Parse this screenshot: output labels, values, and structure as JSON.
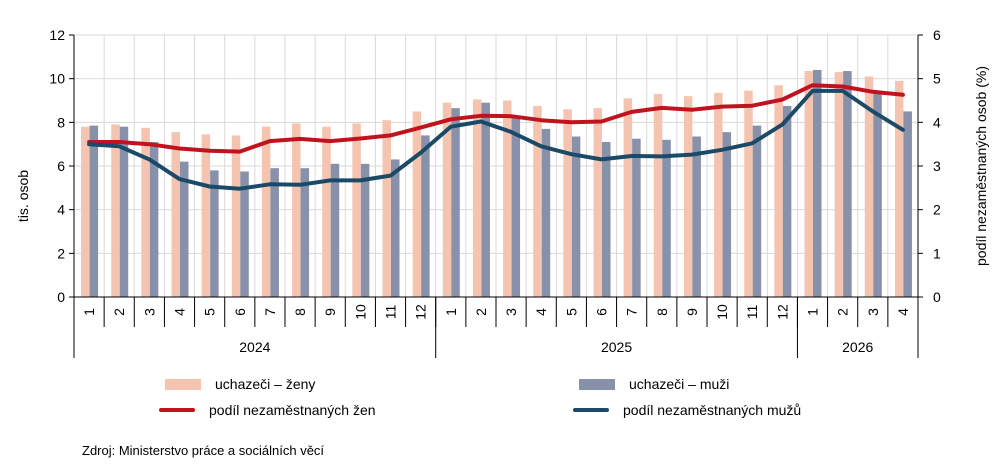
{
  "chart_data": {
    "type": "bar",
    "categories": [
      "1",
      "2",
      "3",
      "4",
      "5",
      "6",
      "7",
      "8",
      "9",
      "10",
      "11",
      "12",
      "1",
      "2",
      "3",
      "4",
      "5",
      "6",
      "7",
      "8",
      "9",
      "10",
      "11",
      "12",
      "1",
      "2",
      "3",
      "4"
    ],
    "years": [
      {
        "label": "2024",
        "months": 12
      },
      {
        "label": "2025",
        "months": 12
      },
      {
        "label": "2026",
        "months": 4
      }
    ],
    "ylabel": "tis. osob",
    "y2label": "podíl nezaměstnaných osob (%)",
    "ylim": [
      0,
      12
    ],
    "y_ticks": [
      "0",
      "2",
      "4",
      "6",
      "8",
      "10",
      "12"
    ],
    "y2lim": [
      0,
      6
    ],
    "y2_ticks": [
      "0",
      "1",
      "2",
      "3",
      "4",
      "5",
      "6"
    ],
    "grid": true,
    "legend_position": "bottom",
    "series": [
      {
        "name": "uchazeči – ženy",
        "kind": "bar",
        "axis": "left",
        "color": "#f4c4b0",
        "values": [
          7.8,
          7.9,
          7.75,
          7.55,
          7.45,
          7.4,
          7.8,
          7.95,
          7.8,
          7.95,
          8.1,
          8.5,
          8.9,
          9.05,
          9.0,
          8.75,
          8.6,
          8.65,
          9.1,
          9.3,
          9.2,
          9.35,
          9.45,
          9.7,
          10.35,
          10.3,
          10.1,
          9.9
        ]
      },
      {
        "name": "uchazeči – muži",
        "kind": "bar",
        "axis": "left",
        "color": "#8791aa",
        "values": [
          7.85,
          7.8,
          7.1,
          6.2,
          5.8,
          5.75,
          5.9,
          5.9,
          6.1,
          6.1,
          6.3,
          7.4,
          8.65,
          8.9,
          8.25,
          7.7,
          7.35,
          7.1,
          7.25,
          7.2,
          7.35,
          7.55,
          7.85,
          8.75,
          10.4,
          10.35,
          9.4,
          8.5
        ]
      },
      {
        "name": "podíl nezaměstnaných žen",
        "kind": "line",
        "axis": "right",
        "color": "#c0131e",
        "values": [
          3.55,
          3.55,
          3.5,
          3.4,
          3.35,
          3.33,
          3.57,
          3.62,
          3.57,
          3.63,
          3.7,
          3.88,
          4.07,
          4.15,
          4.14,
          4.05,
          4.0,
          4.02,
          4.24,
          4.33,
          4.29,
          4.36,
          4.38,
          4.52,
          4.85,
          4.82,
          4.7,
          4.63
        ]
      },
      {
        "name": "podíl nezaměstnaných mužů",
        "kind": "line",
        "axis": "right",
        "color": "#1b4a68",
        "values": [
          3.5,
          3.45,
          3.15,
          2.7,
          2.53,
          2.48,
          2.58,
          2.57,
          2.67,
          2.67,
          2.78,
          3.3,
          3.9,
          4.02,
          3.78,
          3.45,
          3.27,
          3.15,
          3.23,
          3.22,
          3.26,
          3.37,
          3.52,
          3.95,
          4.72,
          4.72,
          4.25,
          3.83
        ]
      }
    ]
  },
  "source": "Zdroj: Ministerstvo  práce a sociálních věcí"
}
